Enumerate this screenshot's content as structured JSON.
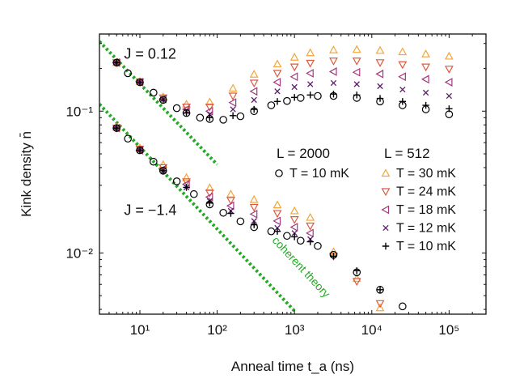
{
  "chart_data": {
    "type": "scatter",
    "x_scale": "log",
    "y_scale": "log",
    "xlim": [
      3,
      300000
    ],
    "ylim": [
      0.0037,
      0.35
    ],
    "xlabel": "Anneal time t_a (ns)",
    "ylabel": "Kink density n̄",
    "x_ticks": [
      {
        "value": 10,
        "label": "10¹"
      },
      {
        "value": 100,
        "label": "10²"
      },
      {
        "value": 1000,
        "label": "10³"
      },
      {
        "value": 10000,
        "label": "10⁴"
      },
      {
        "value": 100000,
        "label": "10⁵"
      }
    ],
    "y_ticks": [
      {
        "value": 0.1,
        "label": "10⁻¹"
      },
      {
        "value": 0.01,
        "label": "10⁻²"
      }
    ],
    "annotations": [
      {
        "text": "J = 0.12",
        "x": 5.4,
        "y": 0.2
      },
      {
        "text": "J = −1.4",
        "x": 5.4,
        "y": 0.0185
      },
      {
        "text": "coherent theory",
        "x": 900,
        "y": 0.0072
      }
    ],
    "legend": {
      "placement": "center-right",
      "headers": [
        "L = 2000",
        "L = 512"
      ],
      "entries": [
        {
          "marker": "○",
          "label": "T = 10 mK",
          "color": "#000000",
          "column": 0
        },
        {
          "marker": "△",
          "label": "T = 30 mK",
          "color": "#f4a53b",
          "column": 1
        },
        {
          "marker": "▽",
          "label": "T = 24 mK",
          "color": "#dc5b40",
          "column": 1
        },
        {
          "marker": "◁",
          "label": "T = 18 mK",
          "color": "#a6377e",
          "column": 1
        },
        {
          "marker": "×",
          "label": "T = 12 mK",
          "color": "#5c1f6a",
          "column": 1
        },
        {
          "marker": "+",
          "label": "T = 10 mK",
          "color": "#000000",
          "column": 1
        }
      ]
    },
    "theory_lines": [
      {
        "name": "coherent theory",
        "color": "#22aa22",
        "points": [
          [
            3,
            0.31
          ],
          [
            100,
            0.042
          ]
        ]
      },
      {
        "name": "coherent theory",
        "color": "#22aa22",
        "points": [
          [
            3,
            0.112
          ],
          [
            1000,
            0.0039
          ]
        ]
      }
    ],
    "groups": [
      {
        "J": "0.12",
        "T": "10 mK",
        "L": "2000",
        "marker": "circle",
        "color": "#000000",
        "x": [
          5,
          7,
          10,
          15,
          20,
          30,
          40,
          60,
          80,
          120,
          200,
          300,
          500,
          800,
          1200,
          2000,
          3200,
          6400,
          12800,
          25000,
          50000,
          100000
        ],
        "y": [
          0.22,
          0.185,
          0.16,
          0.135,
          0.12,
          0.105,
          0.097,
          0.09,
          0.088,
          0.087,
          0.092,
          0.1,
          0.11,
          0.118,
          0.124,
          0.128,
          0.128,
          0.124,
          0.117,
          0.11,
          0.103,
          0.095
        ]
      },
      {
        "J": "0.12",
        "T": "10 mK",
        "L": "512",
        "marker": "plus",
        "color": "#000000",
        "x": [
          5,
          10,
          20,
          40,
          80,
          160,
          300,
          600,
          1000,
          1600,
          3200,
          6400,
          12800,
          25000,
          50000,
          100000
        ],
        "y": [
          0.22,
          0.16,
          0.12,
          0.097,
          0.09,
          0.093,
          0.103,
          0.117,
          0.125,
          0.13,
          0.132,
          0.13,
          0.123,
          0.117,
          0.11,
          0.104
        ]
      },
      {
        "J": "0.12",
        "T": "12 mK",
        "L": "512",
        "marker": "x",
        "color": "#5c1f6a",
        "x": [
          5,
          10,
          20,
          40,
          80,
          160,
          300,
          600,
          1000,
          1600,
          3200,
          6400,
          12800,
          25000,
          50000,
          100000
        ],
        "y": [
          0.22,
          0.16,
          0.121,
          0.1,
          0.095,
          0.103,
          0.12,
          0.138,
          0.148,
          0.155,
          0.158,
          0.155,
          0.15,
          0.142,
          0.135,
          0.128
        ]
      },
      {
        "J": "0.12",
        "T": "18 mK",
        "L": "512",
        "marker": "tri-left",
        "color": "#a6377e",
        "x": [
          5,
          10,
          20,
          40,
          80,
          160,
          300,
          600,
          1000,
          1600,
          3200,
          6400,
          12800,
          25000,
          50000,
          100000
        ],
        "y": [
          0.22,
          0.16,
          0.122,
          0.103,
          0.1,
          0.115,
          0.138,
          0.16,
          0.175,
          0.185,
          0.19,
          0.188,
          0.183,
          0.175,
          0.168,
          0.16
        ]
      },
      {
        "J": "0.12",
        "T": "24 mK",
        "L": "512",
        "marker": "tri-down",
        "color": "#dc5b40",
        "x": [
          5,
          10,
          20,
          40,
          80,
          160,
          300,
          600,
          1000,
          1600,
          3200,
          6400,
          12800,
          25000,
          50000,
          100000
        ],
        "y": [
          0.22,
          0.161,
          0.124,
          0.107,
          0.107,
          0.128,
          0.158,
          0.185,
          0.205,
          0.218,
          0.226,
          0.226,
          0.22,
          0.213,
          0.205,
          0.198
        ]
      },
      {
        "J": "0.12",
        "T": "30 mK",
        "L": "512",
        "marker": "tri-up",
        "color": "#f4a53b",
        "x": [
          5,
          10,
          20,
          40,
          80,
          160,
          300,
          600,
          1000,
          1600,
          3200,
          6400,
          12800,
          25000,
          50000,
          100000
        ],
        "y": [
          0.22,
          0.162,
          0.126,
          0.112,
          0.116,
          0.145,
          0.182,
          0.215,
          0.24,
          0.258,
          0.27,
          0.272,
          0.268,
          0.262,
          0.253,
          0.244
        ]
      },
      {
        "J": "-1.4",
        "T": "10 mK",
        "L": "2000",
        "marker": "circle",
        "color": "#000000",
        "x": [
          5,
          7,
          10,
          15,
          20,
          30,
          50,
          80,
          120,
          200,
          300,
          500,
          800,
          1200,
          2000,
          3200,
          6400,
          12800,
          25000
        ],
        "y": [
          0.076,
          0.064,
          0.053,
          0.044,
          0.038,
          0.032,
          0.026,
          0.022,
          0.0192,
          0.0167,
          0.0152,
          0.0142,
          0.0132,
          0.0122,
          0.0112,
          0.0097,
          0.0073,
          0.0055,
          0.0042
        ]
      },
      {
        "J": "-1.4",
        "T": "10 mK",
        "L": "512",
        "marker": "plus",
        "color": "#000000",
        "x": [
          5,
          10,
          20,
          40,
          80,
          150,
          300,
          600,
          1000,
          1600,
          3200,
          6400,
          12800
        ],
        "y": [
          0.076,
          0.053,
          0.038,
          0.029,
          0.0225,
          0.019,
          0.0158,
          0.0142,
          0.013,
          0.012,
          0.0095,
          0.0075,
          0.0055
        ]
      },
      {
        "J": "-1.4",
        "T": "12 mK",
        "L": "512",
        "marker": "x",
        "color": "#5c1f6a",
        "x": [
          5,
          10,
          20,
          40,
          80,
          150,
          300,
          600,
          1000,
          1600
        ],
        "y": [
          0.076,
          0.053,
          0.038,
          0.029,
          0.0232,
          0.0198,
          0.0168,
          0.015,
          0.0138,
          0.0125
        ]
      },
      {
        "J": "-1.4",
        "T": "18 mK",
        "L": "512",
        "marker": "tri-left",
        "color": "#a6377e",
        "x": [
          5,
          10,
          20,
          40,
          80,
          150,
          300,
          600,
          1000,
          1600
        ],
        "y": [
          0.076,
          0.053,
          0.039,
          0.0305,
          0.0248,
          0.0215,
          0.0188,
          0.0168,
          0.0152,
          0.0138
        ]
      },
      {
        "J": "-1.4",
        "T": "24 mK",
        "L": "512",
        "marker": "tri-down",
        "color": "#dc5b40",
        "x": [
          5,
          10,
          20,
          40,
          80,
          150,
          300,
          600,
          1000,
          1600,
          3200,
          6400,
          12800
        ],
        "y": [
          0.076,
          0.054,
          0.04,
          0.0318,
          0.0265,
          0.0235,
          0.021,
          0.019,
          0.0172,
          0.0155,
          0.0095,
          0.0063,
          0.0044
        ]
      },
      {
        "J": "-1.4",
        "T": "30 mK",
        "L": "512",
        "marker": "tri-up",
        "color": "#f4a53b",
        "x": [
          5,
          10,
          20,
          40,
          80,
          150,
          300,
          600,
          1000,
          1600,
          3200,
          6400,
          12800
        ],
        "y": [
          0.077,
          0.055,
          0.042,
          0.034,
          0.0288,
          0.026,
          0.0238,
          0.0218,
          0.0198,
          0.0178,
          0.0102,
          0.0066,
          0.0041
        ]
      }
    ]
  }
}
